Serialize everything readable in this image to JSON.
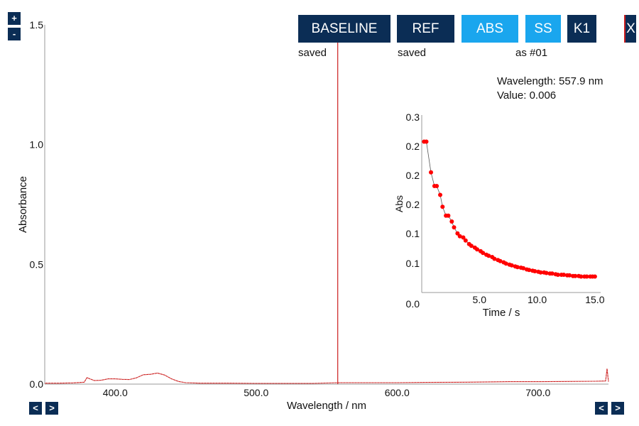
{
  "toolbar": {
    "baseline_label": "BASELINE",
    "ref_label": "REF",
    "abs_label": "ABS",
    "ss_label": "SS",
    "k1_label": "K1",
    "close_label": "X"
  },
  "status": {
    "baseline": "saved",
    "ref": "saved",
    "ss": "as #01"
  },
  "zoom": {
    "in": "+",
    "out": "-"
  },
  "nav": {
    "left_prev": "<",
    "left_next": ">",
    "right_prev": "<",
    "right_next": ">"
  },
  "readout": {
    "wavelength": "Wavelength: 557.9 nm",
    "value": "Value: 0.006"
  },
  "colors": {
    "dark_button": "#0b2d55",
    "light_button": "#1aa6ee",
    "trace": "#cc1f1f",
    "kinetics_point": "#ff0000"
  },
  "chart_data": [
    {
      "type": "line",
      "xlabel": "Wavelength / nm",
      "ylabel": "Absorbance",
      "xlim": [
        350,
        750
      ],
      "ylim": [
        0,
        1.5
      ],
      "x_ticks": [
        "400.0",
        "500.0",
        "600.0",
        "700.0"
      ],
      "y_ticks": [
        "0.0",
        "0.5",
        "1.0",
        "1.5"
      ],
      "cursor_x": 557.9,
      "series": [
        {
          "x": [
            350,
            360,
            370,
            378,
            380,
            385,
            390,
            395,
            400,
            405,
            410,
            415,
            420,
            425,
            430,
            435,
            440,
            445,
            450,
            460,
            480,
            500,
            520,
            540,
            557.9,
            570,
            600,
            620,
            650,
            680,
            700,
            720,
            740,
            748,
            749,
            750
          ],
          "values": [
            0.004,
            0.004,
            0.005,
            0.008,
            0.027,
            0.015,
            0.016,
            0.022,
            0.022,
            0.02,
            0.019,
            0.026,
            0.039,
            0.041,
            0.046,
            0.038,
            0.022,
            0.011,
            0.006,
            0.004,
            0.004,
            0.003,
            0.003,
            0.003,
            0.006,
            0.006,
            0.006,
            0.007,
            0.008,
            0.01,
            0.01,
            0.011,
            0.012,
            0.013,
            0.065,
            0.01
          ]
        }
      ]
    },
    {
      "type": "scatter",
      "xlabel": "Time / s",
      "ylabel": "Abs",
      "xlim": [
        0,
        15.5
      ],
      "ylim": [
        0,
        0.3
      ],
      "x_ticks": [
        "5.0",
        "10.0",
        "15.0"
      ],
      "y_ticks": [
        "0.0",
        "0.1",
        "0.1",
        "0.2",
        "0.2",
        "0.2",
        "0.3"
      ],
      "series": [
        {
          "x": [
            0.2,
            0.4,
            0.8,
            1.1,
            1.3,
            1.6,
            1.8,
            2.1,
            2.3,
            2.6,
            2.8,
            3.1,
            3.3,
            3.6,
            3.8,
            4.1,
            4.3,
            4.6,
            4.8,
            5.1,
            5.3,
            5.6,
            5.8,
            6.1,
            6.3,
            6.6,
            6.8,
            7.1,
            7.3,
            7.6,
            7.8,
            8.1,
            8.3,
            8.6,
            8.8,
            9.1,
            9.3,
            9.6,
            9.8,
            10.1,
            10.3,
            10.6,
            10.8,
            11.1,
            11.3,
            11.6,
            11.8,
            12.1,
            12.3,
            12.6,
            12.8,
            13.1,
            13.3,
            13.6,
            13.8,
            14.1,
            14.3,
            14.6,
            14.8,
            15.0
          ],
          "values": [
            0.255,
            0.255,
            0.203,
            0.18,
            0.18,
            0.165,
            0.145,
            0.13,
            0.13,
            0.12,
            0.11,
            0.1,
            0.095,
            0.093,
            0.088,
            0.082,
            0.079,
            0.076,
            0.073,
            0.07,
            0.067,
            0.064,
            0.062,
            0.06,
            0.057,
            0.055,
            0.053,
            0.051,
            0.049,
            0.047,
            0.046,
            0.044,
            0.043,
            0.042,
            0.041,
            0.039,
            0.038,
            0.037,
            0.036,
            0.035,
            0.034,
            0.034,
            0.033,
            0.032,
            0.032,
            0.031,
            0.03,
            0.03,
            0.03,
            0.029,
            0.029,
            0.028,
            0.028,
            0.028,
            0.027,
            0.027,
            0.027,
            0.027,
            0.027,
            0.027
          ]
        }
      ]
    }
  ]
}
